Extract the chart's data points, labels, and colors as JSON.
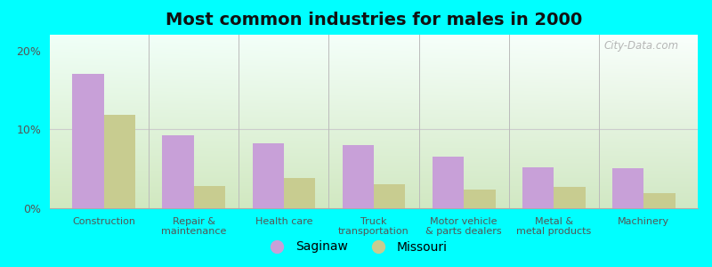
{
  "title": "Most common industries for males in 2000",
  "categories": [
    "Construction",
    "Repair &\nmaintenance",
    "Health care",
    "Truck\ntransportation",
    "Motor vehicle\n& parts dealers",
    "Metal &\nmetal products",
    "Machinery"
  ],
  "saginaw": [
    17.0,
    9.2,
    8.2,
    8.0,
    6.5,
    5.2,
    5.1
  ],
  "missouri": [
    11.8,
    2.8,
    3.8,
    3.0,
    2.4,
    2.7,
    1.9
  ],
  "saginaw_color": "#c8a0d8",
  "missouri_color": "#c8cc90",
  "bar_width": 0.35,
  "ylim": [
    0,
    22
  ],
  "yticks": [
    0,
    10,
    20
  ],
  "ytick_labels": [
    "0%",
    "10%",
    "20%"
  ],
  "outer_bg": "#00ffff",
  "legend_labels": [
    "Saginaw",
    "Missouri"
  ],
  "title_fontsize": 14,
  "watermark": "City-Data.com",
  "separator_color": "#bbbbbb",
  "grid_color": "#cccccc",
  "tick_label_color": "#555555"
}
